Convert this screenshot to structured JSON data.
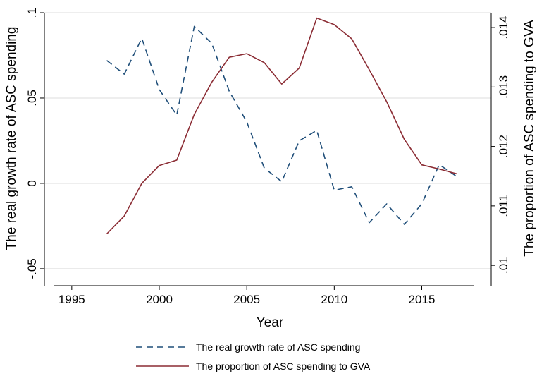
{
  "chart_data": {
    "type": "line",
    "title": "",
    "xlabel": "Year",
    "ylabel_left": "The real growth rate of ASC spending",
    "ylabel_right": "The proportion of ASC spending to GVA",
    "xlim": [
      1994,
      2018
    ],
    "ylim_left": [
      -0.055,
      0.1
    ],
    "ylim_right": [
      0.0098,
      0.01425
    ],
    "x_ticks": [
      {
        "value": 1995,
        "label": "1995"
      },
      {
        "value": 2000,
        "label": "2000"
      },
      {
        "value": 2005,
        "label": "2005"
      },
      {
        "value": 2010,
        "label": "2010"
      },
      {
        "value": 2015,
        "label": "2015"
      }
    ],
    "y_ticks_left": [
      {
        "value": -0.05,
        "label": "-.05"
      },
      {
        "value": 0,
        "label": "0"
      },
      {
        "value": 0.05,
        "label": ".05"
      },
      {
        "value": 0.1,
        "label": ".1"
      }
    ],
    "y_ticks_right": [
      {
        "value": 0.01,
        "label": ".01"
      },
      {
        "value": 0.011,
        "label": ".011"
      },
      {
        "value": 0.012,
        "label": ".012"
      },
      {
        "value": 0.013,
        "label": ".013"
      },
      {
        "value": 0.014,
        "label": ".014"
      }
    ],
    "grid": true,
    "legend_position": "bottom",
    "series": [
      {
        "name": "The real growth rate of ASC spending",
        "axis": "left",
        "style": "dashed",
        "color": "#1f4e79",
        "x": [
          1997,
          1998,
          1999,
          2000,
          2001,
          2002,
          2003,
          2004,
          2005,
          2006,
          2007,
          2008,
          2009,
          2010,
          2011,
          2012,
          2013,
          2014,
          2015,
          2016,
          2017
        ],
        "y": [
          0.072,
          0.064,
          0.085,
          0.055,
          0.04,
          0.092,
          0.082,
          0.054,
          0.036,
          0.009,
          0.001,
          0.025,
          0.031,
          -0.004,
          -0.002,
          -0.023,
          -0.012,
          -0.024,
          -0.012,
          0.011,
          0.004
        ]
      },
      {
        "name": "The proportion of ASC spending to GVA",
        "axis": "right",
        "style": "solid",
        "color": "#8b2c34",
        "x": [
          1997,
          1998,
          1999,
          2000,
          2001,
          2002,
          2003,
          2004,
          2005,
          2006,
          2007,
          2008,
          2009,
          2010,
          2011,
          2012,
          2013,
          2014,
          2015,
          2016,
          2017
        ],
        "y": [
          0.01053,
          0.01083,
          0.01138,
          0.01168,
          0.01177,
          0.01254,
          0.01308,
          0.0135,
          0.01356,
          0.01341,
          0.01305,
          0.01332,
          0.01416,
          0.01405,
          0.01381,
          0.01329,
          0.01275,
          0.01212,
          0.01169,
          0.01162,
          0.01154
        ]
      }
    ]
  }
}
